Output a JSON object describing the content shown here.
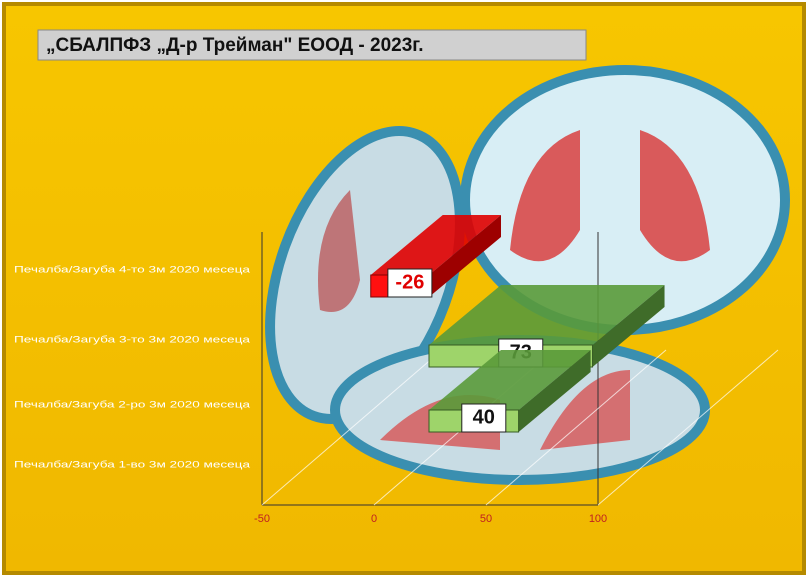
{
  "chart_data": {
    "type": "bar3d",
    "title": "„СБАЛПФЗ „Д-р Трейман\" ЕООД - 2023г.",
    "categories": [
      "Печалба/Загуба 4-то 3м 2020 месеца",
      "Печалба/Загуба 3-то 3м 2020 месеца",
      "Печалба/Загуба 2-ро 3м 2020 месеца",
      "Печалба/Загуба 1-во 3м 2020 месеца"
    ],
    "values": [
      -26,
      73,
      40,
      null
    ],
    "colors": [
      "#e00000",
      "#5a9a3a",
      "#5a9a3a",
      "#5a9a3a"
    ],
    "xlim": [
      -50,
      100
    ],
    "xticks": [
      -50,
      0,
      50,
      100
    ],
    "grid": true
  }
}
